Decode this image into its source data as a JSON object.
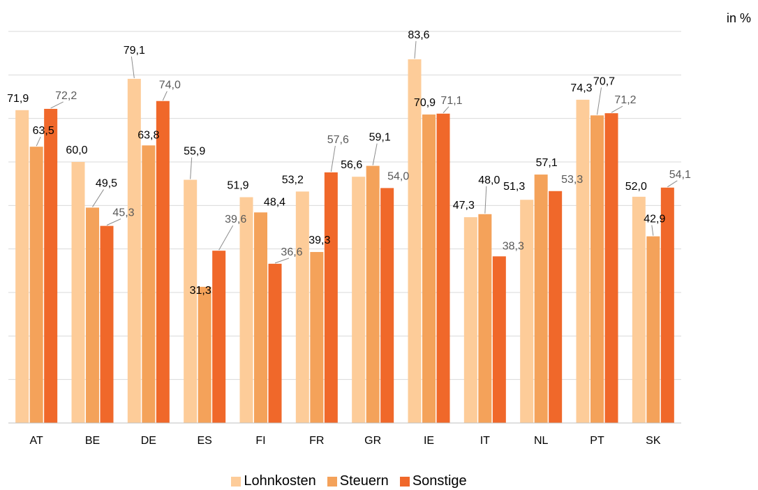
{
  "unit_label": "in %",
  "chart_data": {
    "type": "bar",
    "categories": [
      "AT",
      "BE",
      "DE",
      "ES",
      "FI",
      "FR",
      "GR",
      "IE",
      "IT",
      "NL",
      "PT",
      "SK"
    ],
    "series": [
      {
        "name": "Lohnkosten",
        "color": "#fdcc99",
        "values": [
          71.9,
          60.0,
          79.1,
          55.9,
          51.9,
          53.2,
          56.6,
          83.6,
          47.3,
          51.3,
          74.3,
          52.0
        ],
        "labels": [
          "71,9",
          "60,0",
          "79,1",
          "55,9",
          "51,9",
          "53,2",
          "56,6",
          "83,6",
          "47,3",
          "51,3",
          "74,3",
          "52,0"
        ]
      },
      {
        "name": "Steuern",
        "color": "#f4a25a",
        "values": [
          63.5,
          49.5,
          63.8,
          31.3,
          48.4,
          39.3,
          59.1,
          70.9,
          48.0,
          57.1,
          70.7,
          42.9
        ],
        "labels": [
          "63,5",
          "49,5",
          "63,8",
          "31,3",
          "48,4",
          "39,3",
          "59,1",
          "70,9",
          "48,0",
          "57,1",
          "70,7",
          "42,9"
        ]
      },
      {
        "name": "Sonstige",
        "color": "#f0682a",
        "values": [
          72.2,
          45.3,
          74.0,
          39.6,
          36.6,
          57.6,
          54.0,
          71.1,
          38.3,
          53.3,
          71.2,
          54.1
        ],
        "labels": [
          "72,2",
          "45,3",
          "74,0",
          "39,6",
          "36,6",
          "57,6",
          "54,0",
          "71,1",
          "38,3",
          "53,3",
          "71,2",
          "54,1"
        ]
      }
    ],
    "ylim": [
      0,
      90
    ],
    "grid": true,
    "legend_position": "bottom"
  }
}
